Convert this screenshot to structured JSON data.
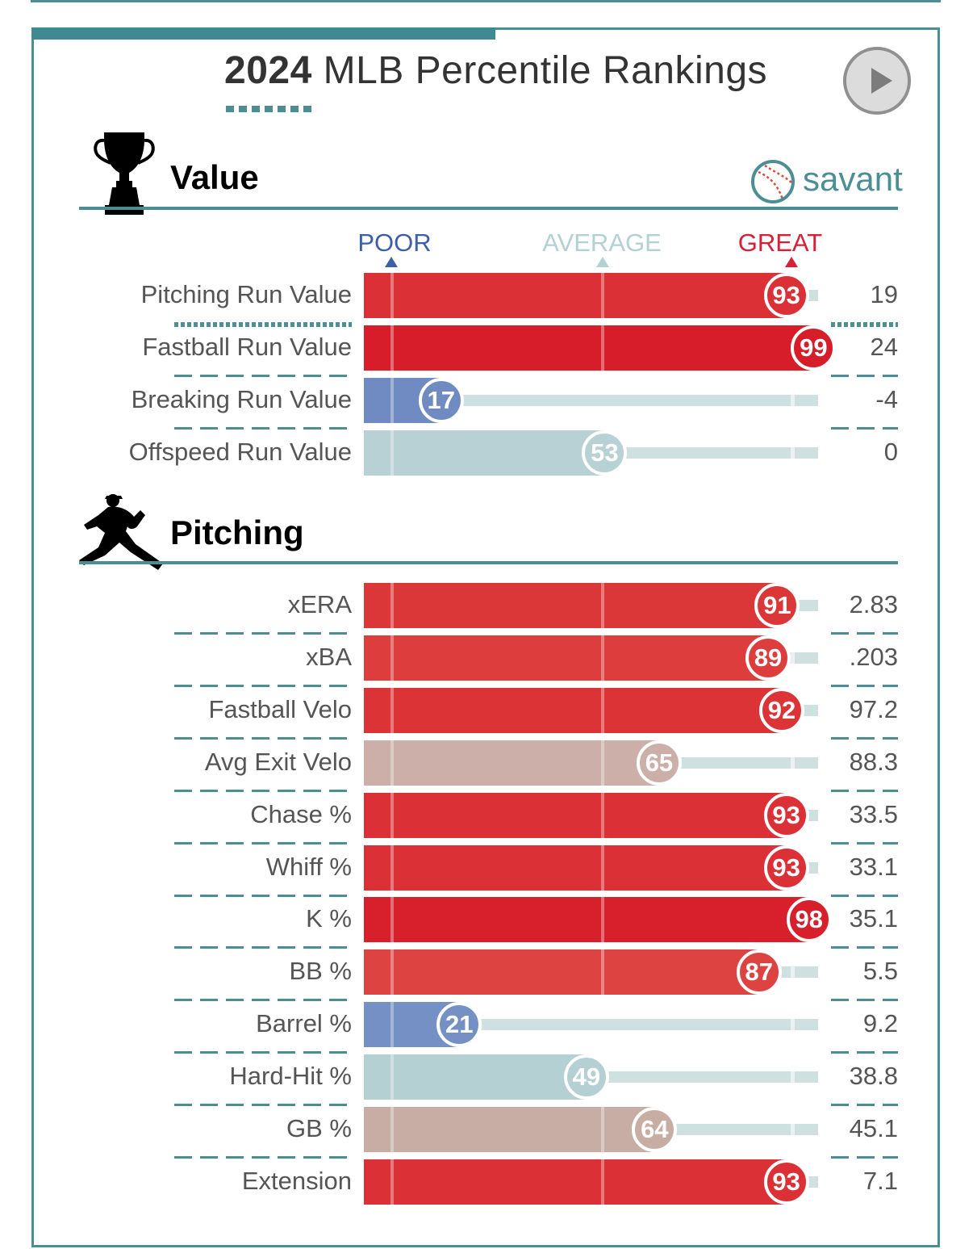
{
  "header": {
    "title_year": "2024",
    "title_rest": " MLB Percentile Rankings",
    "savant_label": "savant"
  },
  "scale": {
    "poor": "POOR",
    "average": "AVERAGE",
    "great": "GREAT"
  },
  "colors": {
    "accent": "#4d8d94",
    "poor": "#3d5fa7",
    "average": "#b3d0d2",
    "great": "#d5203a"
  },
  "chart_data": {
    "type": "bar",
    "value_range": [
      0,
      100
    ],
    "sections": [
      {
        "name": "Value",
        "metrics": [
          {
            "label": "Pitching Run Value",
            "percentile": 93,
            "value": "19"
          },
          {
            "label": "Fastball Run Value",
            "percentile": 99,
            "value": "24"
          },
          {
            "label": "Breaking Run Value",
            "percentile": 17,
            "value": "-4"
          },
          {
            "label": "Offspeed Run Value",
            "percentile": 53,
            "value": "0"
          }
        ]
      },
      {
        "name": "Pitching",
        "metrics": [
          {
            "label": "xERA",
            "percentile": 91,
            "value": "2.83"
          },
          {
            "label": "xBA",
            "percentile": 89,
            "value": ".203"
          },
          {
            "label": "Fastball Velo",
            "percentile": 92,
            "value": "97.2"
          },
          {
            "label": "Avg Exit Velo",
            "percentile": 65,
            "value": "88.3"
          },
          {
            "label": "Chase %",
            "percentile": 93,
            "value": "33.5"
          },
          {
            "label": "Whiff %",
            "percentile": 93,
            "value": "33.1"
          },
          {
            "label": "K %",
            "percentile": 98,
            "value": "35.1"
          },
          {
            "label": "BB %",
            "percentile": 87,
            "value": "5.5"
          },
          {
            "label": "Barrel %",
            "percentile": 21,
            "value": "9.2"
          },
          {
            "label": "Hard-Hit %",
            "percentile": 49,
            "value": "38.8"
          },
          {
            "label": "GB %",
            "percentile": 64,
            "value": "45.1"
          },
          {
            "label": "Extension",
            "percentile": 93,
            "value": "7.1"
          }
        ]
      }
    ]
  }
}
